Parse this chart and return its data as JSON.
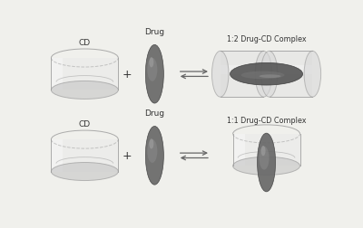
{
  "background_color": "#f0f0ec",
  "cyl_face_color": "#e0e0e0",
  "cyl_edge_color": "#999999",
  "cyl_inner_color": "#d0d0d0",
  "drug_dark": "#686868",
  "drug_mid": "#888888",
  "drug_light": "#a8a8a8",
  "text_color": "#333333",
  "arrow_color": "#666666",
  "label_cd": "CD",
  "label_drug": "Drug",
  "label_11": "1:1 Drug-CD Complex",
  "label_12": "1:2 Drug-CD Complex",
  "fig_width": 4.0,
  "fig_height": 2.53,
  "dpi": 100
}
